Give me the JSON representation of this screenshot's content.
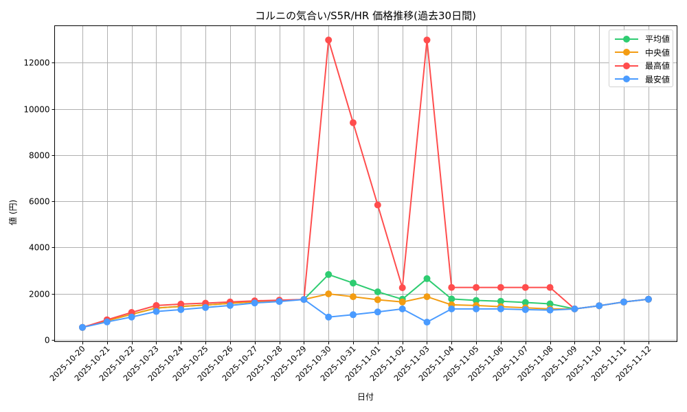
{
  "chart_data": {
    "type": "line",
    "title": "コルニの気合い/S5R/HR 価格推移(過去30日間)",
    "xlabel": "日付",
    "ylabel": "値 (円)",
    "ylim": [
      0,
      13500
    ],
    "yticks": [
      0,
      2000,
      4000,
      6000,
      8000,
      10000,
      12000
    ],
    "grid": true,
    "legend_position": "upper right",
    "categories": [
      "2025-10-20",
      "2025-10-21",
      "2025-10-22",
      "2025-10-23",
      "2025-10-24",
      "2025-10-25",
      "2025-10-26",
      "2025-10-27",
      "2025-10-28",
      "2025-10-29",
      "2025-10-30",
      "2025-10-31",
      "2025-11-01",
      "2025-11-02",
      "2025-11-03",
      "2025-11-04",
      "2025-11-05",
      "2025-11-06",
      "2025-11-07",
      "2025-11-08",
      "2025-11-09",
      "2025-11-10",
      "2025-11-11",
      "2025-11-12"
    ],
    "series": [
      {
        "name": "平均値",
        "color": "#2ecc71",
        "values": [
          540,
          830,
          1110,
          1380,
          1450,
          1510,
          1580,
          1650,
          1700,
          1750,
          2830,
          2460,
          2080,
          1760,
          2650,
          1770,
          1710,
          1670,
          1620,
          1560,
          1340,
          1480,
          1640,
          1760
        ]
      },
      {
        "name": "中央値",
        "color": "#f39c12",
        "values": [
          540,
          830,
          1110,
          1380,
          1450,
          1510,
          1580,
          1650,
          1700,
          1750,
          1990,
          1870,
          1740,
          1640,
          1870,
          1520,
          1490,
          1440,
          1390,
          1340,
          1340,
          1480,
          1640,
          1760
        ]
      },
      {
        "name": "最高値",
        "color": "#ff4d4d",
        "values": [
          540,
          870,
          1190,
          1490,
          1550,
          1590,
          1640,
          1690,
          1720,
          1750,
          12980,
          9400,
          5840,
          2260,
          12980,
          2270,
          2270,
          2270,
          2270,
          2270,
          1340,
          1480,
          1640,
          1760
        ]
      },
      {
        "name": "最安値",
        "color": "#4a9bff",
        "values": [
          540,
          780,
          990,
          1230,
          1310,
          1400,
          1490,
          1600,
          1660,
          1750,
          990,
          1090,
          1210,
          1340,
          770,
          1340,
          1340,
          1340,
          1310,
          1290,
          1340,
          1480,
          1640,
          1760
        ]
      }
    ]
  },
  "legend": {
    "items": [
      {
        "label": "平均値",
        "color": "#2ecc71"
      },
      {
        "label": "中央値",
        "color": "#f39c12"
      },
      {
        "label": "最高値",
        "color": "#ff4d4d"
      },
      {
        "label": "最安値",
        "color": "#4a9bff"
      }
    ]
  },
  "style": {
    "grid_color": "#b0b0b0",
    "axis_color": "#000000",
    "background": "#ffffff"
  }
}
